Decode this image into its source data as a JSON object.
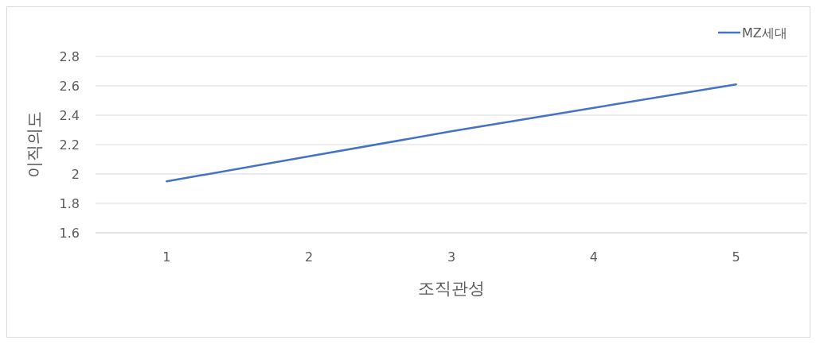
{
  "chart_data": {
    "type": "line",
    "xlabel": "조직관성",
    "ylabel": "이직의도",
    "categories": [
      "1",
      "2",
      "3",
      "4",
      "5"
    ],
    "series": [
      {
        "name": "MZ세대",
        "color": "#4472c4",
        "values": [
          1.95,
          2.12,
          2.29,
          2.45,
          2.61
        ]
      }
    ],
    "ylim": [
      1.6,
      2.8
    ],
    "yticks": [
      1.6,
      1.8,
      2,
      2.2,
      2.4,
      2.6,
      2.8
    ],
    "grid": "y",
    "legend": "top right",
    "marker": "none",
    "line_style": "solid"
  }
}
